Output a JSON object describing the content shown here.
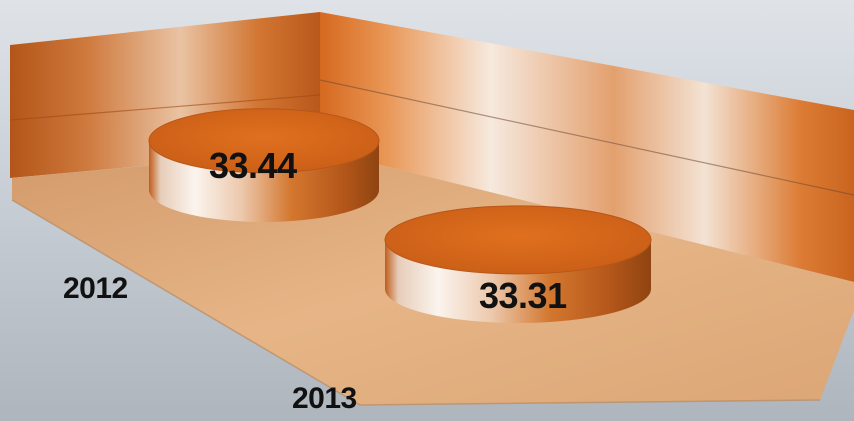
{
  "chart_data": {
    "type": "bar",
    "categories": [
      "2012",
      "2013"
    ],
    "values": [
      33.44,
      33.31
    ],
    "data_labels": [
      "33.44",
      "33.31"
    ],
    "title": "",
    "xlabel": "",
    "ylabel": "",
    "grid": false,
    "legend": "none",
    "style": "3d-cylinder"
  },
  "colors": {
    "accent": "#d9661c",
    "floor": "#e2ad7c",
    "background": "#c9cfd6"
  }
}
